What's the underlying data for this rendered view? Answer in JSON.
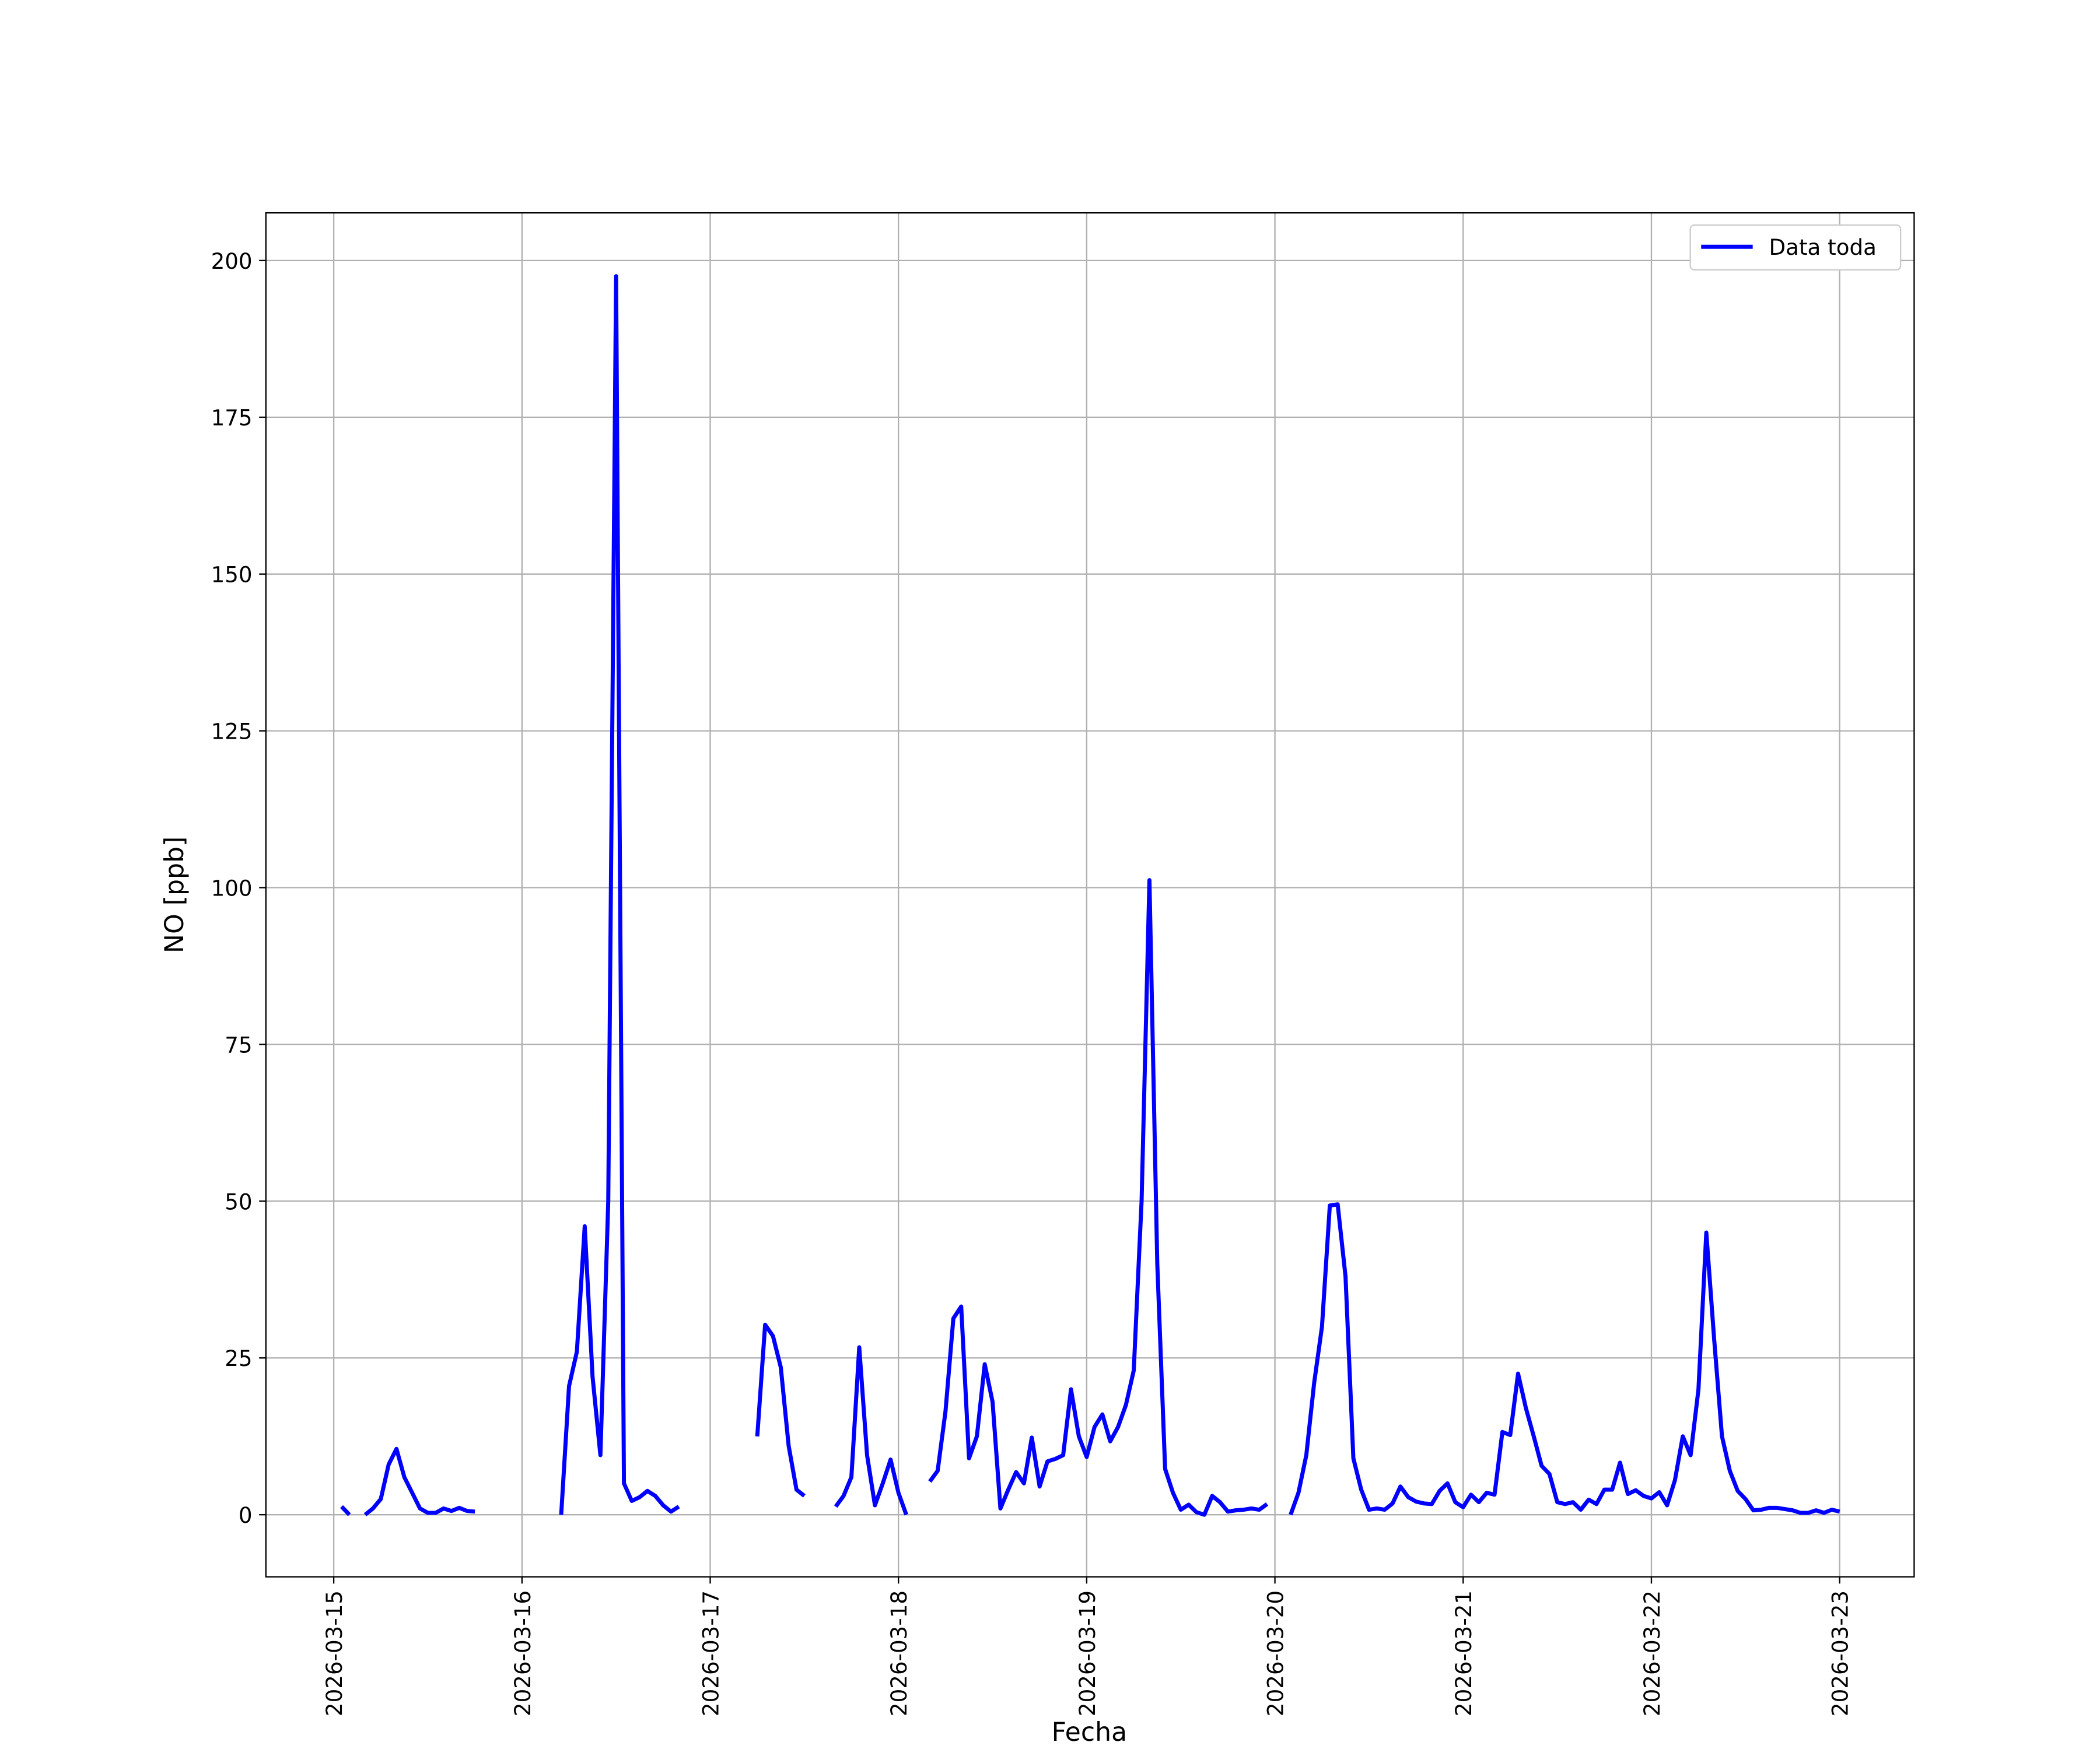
{
  "chart_data": {
    "type": "line",
    "xlabel": "Fecha",
    "ylabel": "NO [ppb]",
    "legend": "upper right",
    "grid": true,
    "xlim": [
      "2026-03-14T15:21",
      "2026-03-23T09:30"
    ],
    "xticks": [
      "2026-03-15",
      "2026-03-16",
      "2026-03-17",
      "2026-03-18",
      "2026-03-19",
      "2026-03-20",
      "2026-03-21",
      "2026-03-22",
      "2026-03-23"
    ],
    "ylim": [
      -9.9,
      207.6
    ],
    "yticks": [
      0,
      25,
      50,
      75,
      100,
      125,
      150,
      175,
      200
    ],
    "x": [
      "2026-03-15T01:00",
      "2026-03-15T02:00",
      "2026-03-15T03:00",
      "2026-03-15T04:00",
      "2026-03-15T05:00",
      "2026-03-15T06:00",
      "2026-03-15T07:00",
      "2026-03-15T08:00",
      "2026-03-15T09:00",
      "2026-03-15T10:00",
      "2026-03-15T11:00",
      "2026-03-15T12:00",
      "2026-03-15T13:00",
      "2026-03-15T14:00",
      "2026-03-15T15:00",
      "2026-03-15T16:00",
      "2026-03-15T17:00",
      "2026-03-15T18:00",
      "2026-03-15T19:00",
      "2026-03-16T05:00",
      "2026-03-16T06:00",
      "2026-03-16T07:00",
      "2026-03-16T08:00",
      "2026-03-16T09:00",
      "2026-03-16T10:00",
      "2026-03-16T11:00",
      "2026-03-16T12:00",
      "2026-03-16T13:00",
      "2026-03-16T14:00",
      "2026-03-16T15:00",
      "2026-03-16T16:00",
      "2026-03-16T17:00",
      "2026-03-16T18:00",
      "2026-03-16T19:00",
      "2026-03-16T20:00",
      "2026-03-16T21:00",
      "2026-03-17T06:00",
      "2026-03-17T07:00",
      "2026-03-17T08:00",
      "2026-03-17T09:00",
      "2026-03-17T10:00",
      "2026-03-17T11:00",
      "2026-03-17T12:00",
      "2026-03-17T13:00",
      "2026-03-17T16:00",
      "2026-03-17T17:00",
      "2026-03-17T18:00",
      "2026-03-17T19:00",
      "2026-03-17T20:00",
      "2026-03-17T21:00",
      "2026-03-17T22:00",
      "2026-03-17T23:00",
      "2026-03-18T00:00",
      "2026-03-18T01:00",
      "2026-03-18T02:00",
      "2026-03-18T04:00",
      "2026-03-18T05:00",
      "2026-03-18T06:00",
      "2026-03-18T07:00",
      "2026-03-18T08:00",
      "2026-03-18T09:00",
      "2026-03-18T10:00",
      "2026-03-18T11:00",
      "2026-03-18T12:00",
      "2026-03-18T13:00",
      "2026-03-18T14:00",
      "2026-03-18T15:00",
      "2026-03-18T16:00",
      "2026-03-18T17:00",
      "2026-03-18T18:00",
      "2026-03-18T19:00",
      "2026-03-18T20:00",
      "2026-03-18T21:00",
      "2026-03-18T22:00",
      "2026-03-18T23:00",
      "2026-03-19T00:00",
      "2026-03-19T01:00",
      "2026-03-19T02:00",
      "2026-03-19T03:00",
      "2026-03-19T04:00",
      "2026-03-19T05:00",
      "2026-03-19T06:00",
      "2026-03-19T07:00",
      "2026-03-19T08:00",
      "2026-03-19T09:00",
      "2026-03-19T10:00",
      "2026-03-19T11:00",
      "2026-03-19T12:00",
      "2026-03-19T13:00",
      "2026-03-19T14:00",
      "2026-03-19T15:00",
      "2026-03-19T16:00",
      "2026-03-19T17:00",
      "2026-03-19T18:00",
      "2026-03-19T19:00",
      "2026-03-19T20:00",
      "2026-03-19T21:00",
      "2026-03-19T22:00",
      "2026-03-19T23:00",
      "2026-03-20T00:00",
      "2026-03-20T02:00",
      "2026-03-20T03:00",
      "2026-03-20T04:00",
      "2026-03-20T05:00",
      "2026-03-20T06:00",
      "2026-03-20T07:00",
      "2026-03-20T08:00",
      "2026-03-20T09:00",
      "2026-03-20T10:00",
      "2026-03-20T11:00",
      "2026-03-20T12:00",
      "2026-03-20T13:00",
      "2026-03-20T14:00",
      "2026-03-20T15:00",
      "2026-03-20T16:00",
      "2026-03-20T17:00",
      "2026-03-20T18:00",
      "2026-03-20T19:00",
      "2026-03-20T20:00",
      "2026-03-20T21:00",
      "2026-03-20T22:00",
      "2026-03-20T23:00",
      "2026-03-21T00:00",
      "2026-03-21T01:00",
      "2026-03-21T02:00",
      "2026-03-21T03:00",
      "2026-03-21T04:00",
      "2026-03-21T05:00",
      "2026-03-21T06:00",
      "2026-03-21T07:00",
      "2026-03-21T08:00",
      "2026-03-21T09:00",
      "2026-03-21T10:00",
      "2026-03-21T11:00",
      "2026-03-21T12:00",
      "2026-03-21T13:00",
      "2026-03-21T14:00",
      "2026-03-21T15:00",
      "2026-03-21T16:00",
      "2026-03-21T17:00",
      "2026-03-21T18:00",
      "2026-03-21T19:00",
      "2026-03-21T20:00",
      "2026-03-21T21:00",
      "2026-03-21T22:00",
      "2026-03-21T23:00",
      "2026-03-22T00:00",
      "2026-03-22T01:00",
      "2026-03-22T02:00",
      "2026-03-22T03:00",
      "2026-03-22T04:00",
      "2026-03-22T05:00",
      "2026-03-22T06:00",
      "2026-03-22T07:00",
      "2026-03-22T08:00",
      "2026-03-22T09:00",
      "2026-03-22T10:00",
      "2026-03-22T11:00",
      "2026-03-22T12:00",
      "2026-03-22T13:00",
      "2026-03-22T14:00",
      "2026-03-22T15:00",
      "2026-03-22T16:00",
      "2026-03-22T17:00",
      "2026-03-22T18:00",
      "2026-03-22T19:00",
      "2026-03-22T20:00",
      "2026-03-22T21:00",
      "2026-03-22T22:00",
      "2026-03-22T23:00",
      "2026-03-23T00:00"
    ],
    "series": [
      {
        "name": "Data toda",
        "color": "#0000ff",
        "values": [
          1.3,
          0,
          null,
          0,
          1,
          2.5,
          8,
          10.5,
          6,
          3.5,
          1,
          0.3,
          0.3,
          1,
          0.6,
          1.1,
          0.6,
          0.5,
          null,
          0,
          20.5,
          26,
          46,
          22,
          9.5,
          50,
          197.5,
          5,
          2.2,
          2.8,
          3.8,
          3,
          1.5,
          0.5,
          1.3,
          null,
          12.5,
          30.3,
          28.5,
          23.5,
          11,
          4,
          3,
          null,
          1.3,
          3,
          6,
          26.7,
          9.5,
          1.5,
          5,
          8.8,
          3.5,
          0,
          null,
          5.3,
          7,
          16.5,
          31.3,
          33.2,
          9,
          12.5,
          24,
          18,
          1,
          4,
          6.8,
          5,
          12.3,
          4.5,
          8.5,
          8.9,
          9.5,
          20,
          12.5,
          9.2,
          14,
          16,
          11.7,
          14,
          17.5,
          23,
          50,
          101.2,
          40,
          7.3,
          3.5,
          0.8,
          1.6,
          0.4,
          0,
          3,
          2,
          0.5,
          0.7,
          0.8,
          1,
          0.8,
          1.7,
          null,
          0,
          3.5,
          9.5,
          21,
          30,
          49.3,
          49.5,
          38,
          9,
          4,
          0.8,
          1,
          0.8,
          1.8,
          4.5,
          2.8,
          2.1,
          1.8,
          1.7,
          3.8,
          5,
          2,
          1.2,
          3.2,
          2,
          3.5,
          3.2,
          13.2,
          12.7,
          22.5,
          17,
          12.5,
          7.8,
          6.5,
          2,
          1.7,
          2,
          0.8,
          2.4,
          1.7,
          4,
          4,
          8.3,
          3.3,
          3.9,
          3,
          2.6,
          3.6,
          1.5,
          5.5,
          12.5,
          9.5,
          20,
          45,
          28,
          12.5,
          7,
          3.8,
          2.5,
          0.7,
          0.8,
          1.1,
          1.1,
          0.9,
          0.7,
          0.3,
          0.3,
          0.7,
          0.3,
          0.8,
          0.5
        ]
      }
    ]
  }
}
